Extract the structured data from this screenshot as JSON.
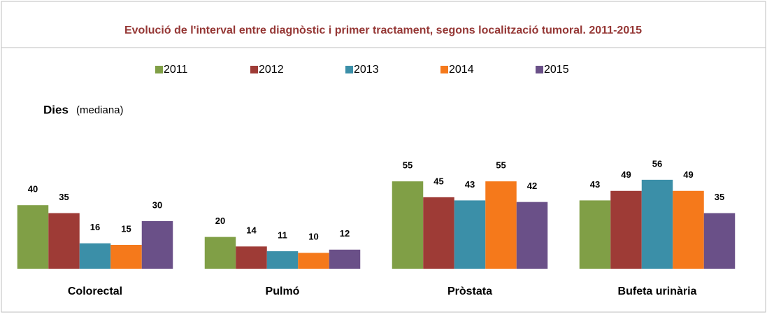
{
  "chart_data": {
    "type": "bar",
    "title": "Evolució  de l'interval entre diagnòstic  i primer tractament, segons localització  tumoral. 2011-2015",
    "ylabel": "Dies",
    "ylabel_note": "(mediana)",
    "categories": [
      "Colorectal",
      "Pulmó",
      "Pròstata",
      "Bufeta urinària"
    ],
    "series": [
      {
        "name": "2011",
        "color": "#809f46",
        "values": [
          40,
          20,
          55,
          43
        ]
      },
      {
        "name": "2012",
        "color": "#9e3b36",
        "values": [
          35,
          14,
          45,
          49
        ]
      },
      {
        "name": "2013",
        "color": "#3b8fa8",
        "values": [
          16,
          11,
          43,
          56
        ]
      },
      {
        "name": "2014",
        "color": "#f5791b",
        "values": [
          15,
          10,
          55,
          49
        ]
      },
      {
        "name": "2015",
        "color": "#6a5088",
        "values": [
          30,
          12,
          42,
          35
        ]
      }
    ],
    "legend": "top"
  }
}
